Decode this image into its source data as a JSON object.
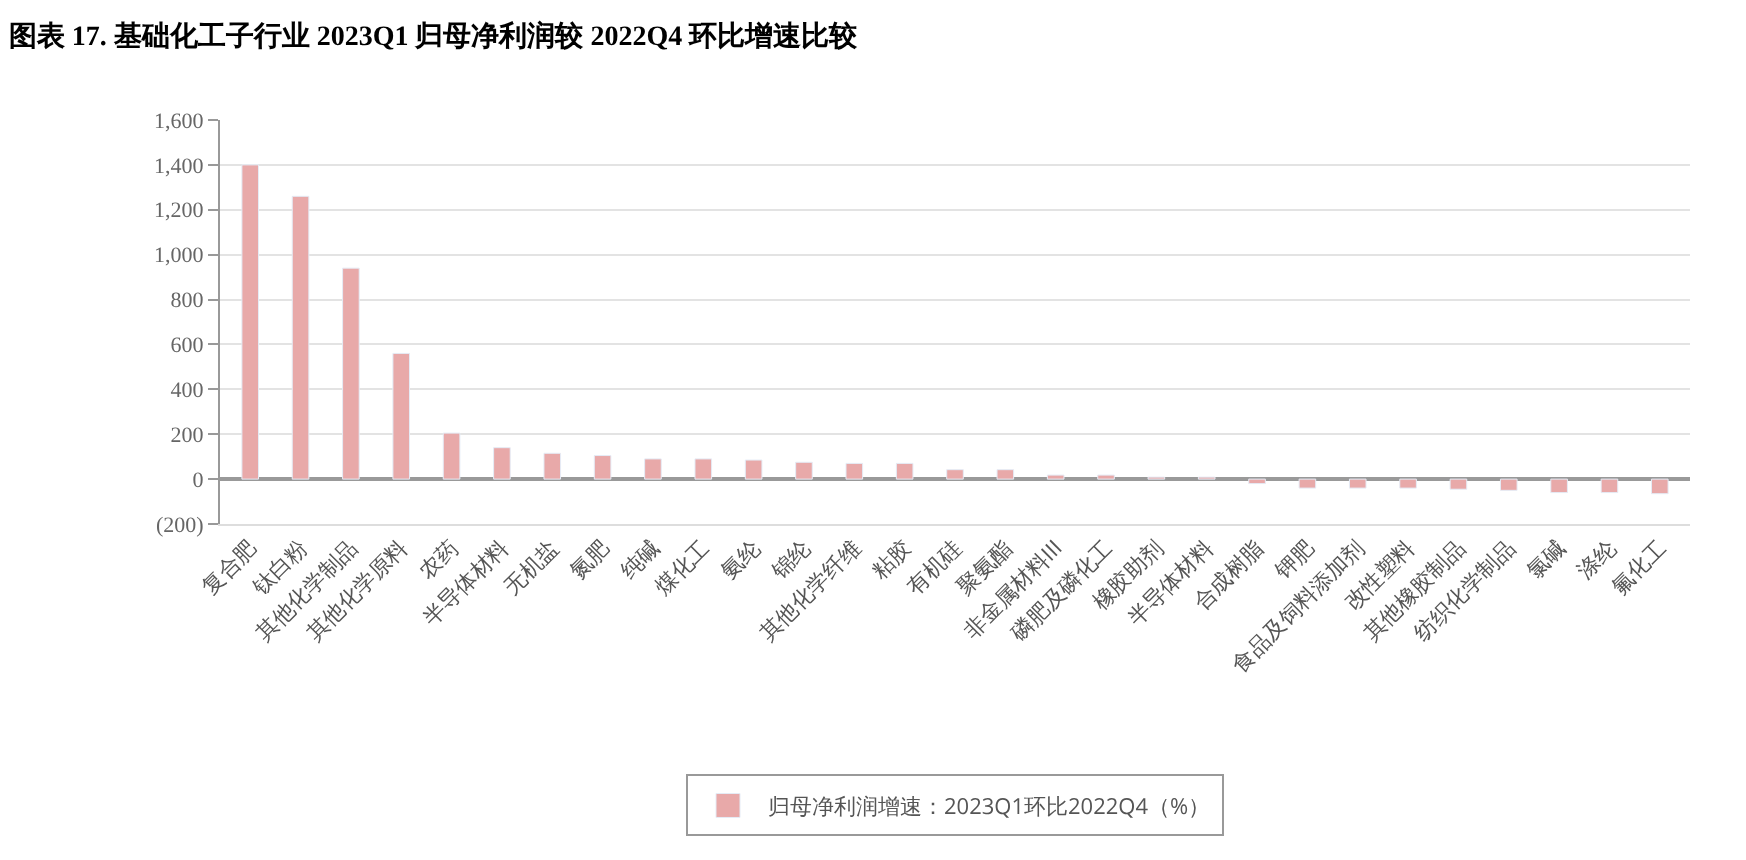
{
  "chart_data": {
    "type": "bar",
    "title": "图表 17. 基础化工子行业 2023Q1 归母净利润较 2022Q4 环比增速比较",
    "categories": [
      "复合肥",
      "钛白粉",
      "其他化学制品",
      "其他化学原料",
      "农药",
      "半导体材料",
      "无机盐",
      "氮肥",
      "纯碱",
      "煤化工",
      "氨纶",
      "锦纶",
      "其他化学纤维",
      "粘胶",
      "有机硅",
      "聚氨酯",
      "非金属材料III",
      "磷肥及磷化工",
      "橡胶助剂",
      "半导体材料",
      "合成树脂",
      "钾肥",
      "食品及饲料添加剂",
      "改性塑料",
      "其他橡胶制品",
      "纺织化学制品",
      "氯碱",
      "涤纶",
      "氟化工"
    ],
    "series": [
      {
        "name": "归母净利润增速：2023Q1环比2022Q4（%）",
        "color": "#e8a9a9",
        "values": [
          1400,
          1260,
          940,
          560,
          205,
          140,
          115,
          105,
          90,
          90,
          85,
          75,
          70,
          70,
          42,
          42,
          18,
          18,
          9,
          9,
          -20,
          -40,
          -40,
          -40,
          -45,
          -50,
          -60,
          -60,
          -65
        ]
      }
    ],
    "ylim": [
      -200,
      1600
    ],
    "yticks": [
      {
        "value": -200,
        "label": "(200)"
      },
      0,
      {
        "value": 200,
        "label": "200"
      },
      {
        "value": 400,
        "label": "400"
      },
      {
        "value": 600,
        "label": "600"
      },
      {
        "value": 800,
        "label": "800"
      },
      {
        "value": 1000,
        "label": "1,000"
      },
      {
        "value": 1200,
        "label": "1,200"
      },
      {
        "value": 1400,
        "label": "1,400"
      },
      {
        "value": 1600,
        "label": "1,600"
      }
    ],
    "grid": "y",
    "legend": "bottom"
  }
}
